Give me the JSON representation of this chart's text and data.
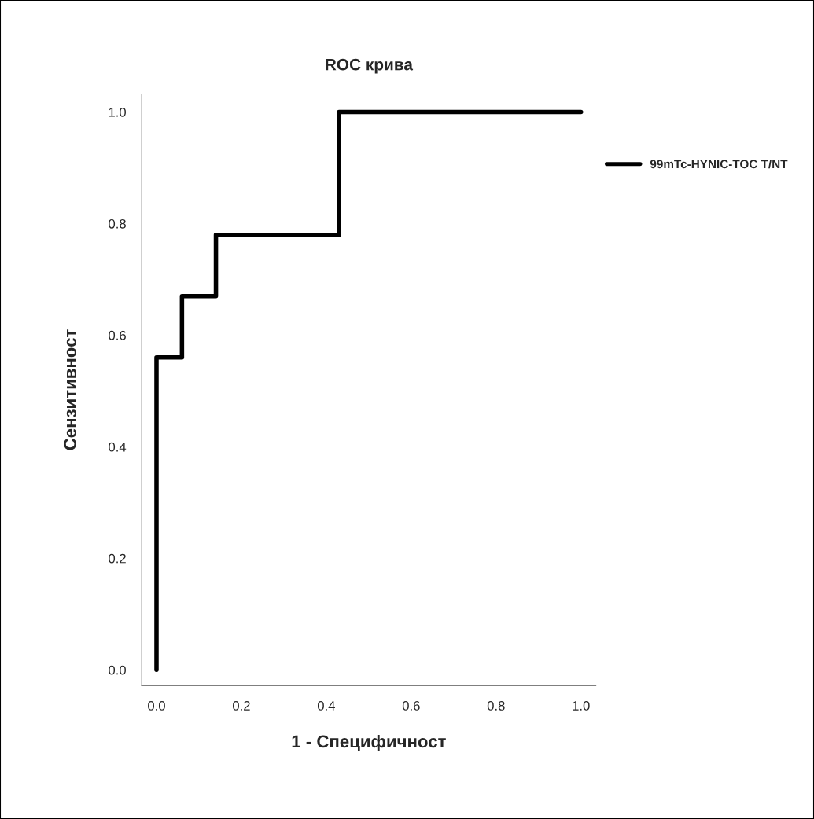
{
  "chart_data": {
    "type": "line",
    "title": "ROC крива",
    "xlabel": "1 - Специфичност",
    "ylabel": "Сензитивност",
    "xlim": [
      -0.035,
      1.035
    ],
    "ylim": [
      -0.028,
      1.032
    ],
    "xticks": [
      {
        "value": 0,
        "label": "0.0"
      },
      {
        "value": 0.2,
        "label": "0.2"
      },
      {
        "value": 0.4,
        "label": "0.4"
      },
      {
        "value": 0.6,
        "label": "0.6"
      },
      {
        "value": 0.8,
        "label": "0.8"
      },
      {
        "value": 1,
        "label": "1.0"
      }
    ],
    "yticks": [
      {
        "value": 0,
        "label": "0.0"
      },
      {
        "value": 0.2,
        "label": "0.2"
      },
      {
        "value": 0.4,
        "label": "0.4"
      },
      {
        "value": 0.6,
        "label": "0.6"
      },
      {
        "value": 0.8,
        "label": "0.8"
      },
      {
        "value": 1,
        "label": "1.0"
      }
    ],
    "series": [
      {
        "name": "99mTc-HYNIC-TOC T/NT",
        "color": "#000000",
        "x": [
          0,
          0,
          0.06,
          0.06,
          0.14,
          0.14,
          0.43,
          0.43,
          1
        ],
        "values": [
          0,
          0.56,
          0.56,
          0.67,
          0.67,
          0.78,
          0.78,
          1,
          1
        ]
      }
    ],
    "legend": "right",
    "grid": false,
    "line_style": "solid"
  }
}
